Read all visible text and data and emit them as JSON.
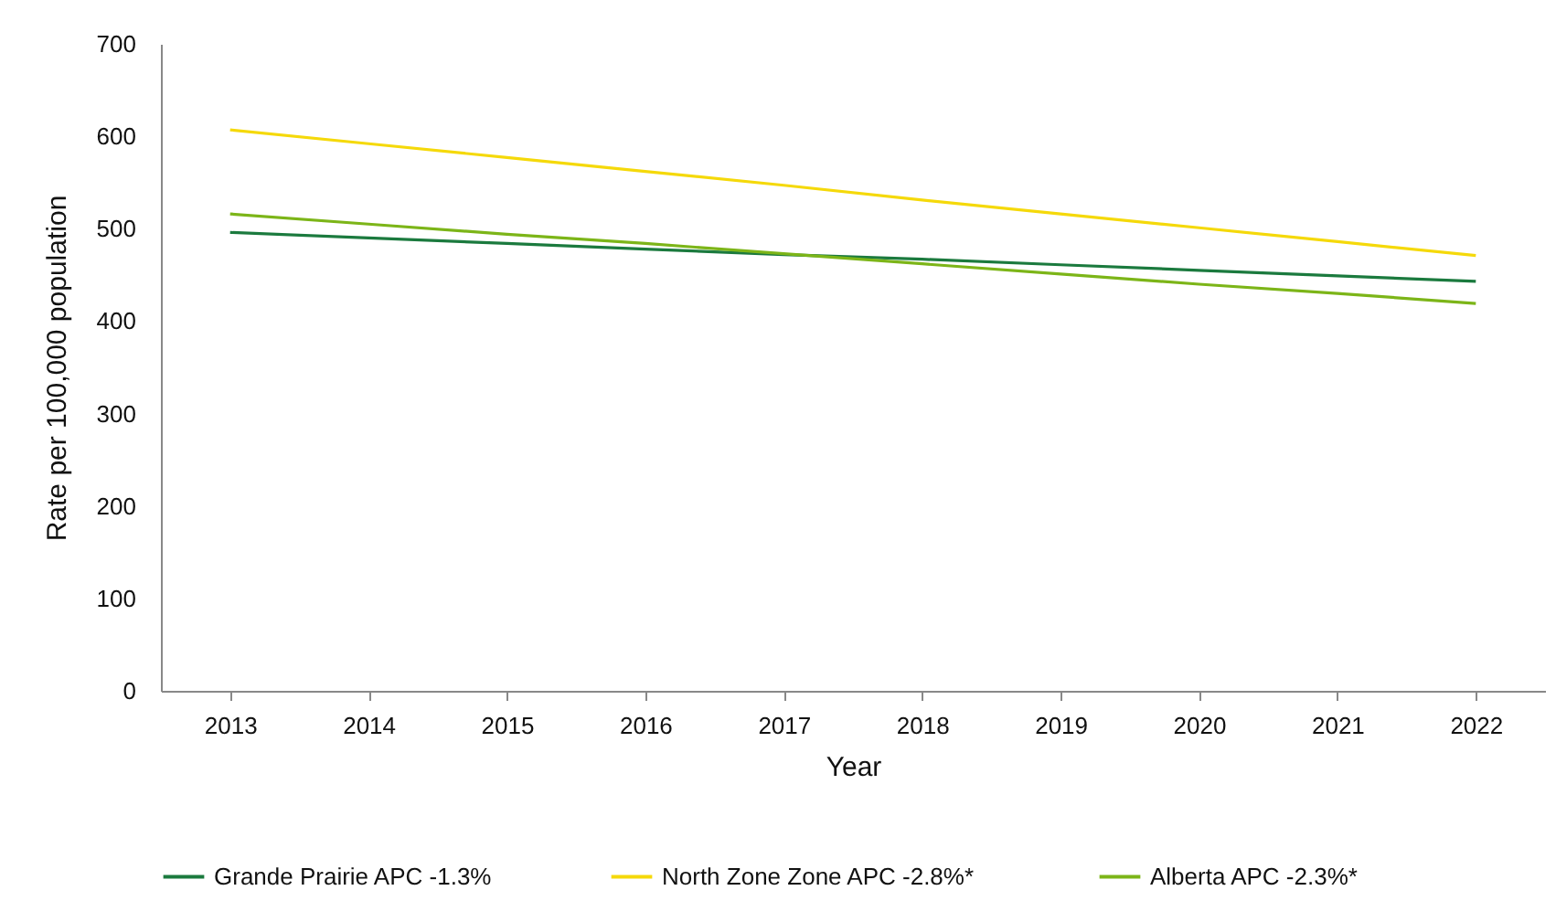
{
  "chart_data": {
    "type": "line",
    "xlabel": "Year",
    "ylabel": "Rate per 100,000 population",
    "categories": [
      "2013",
      "2014",
      "2015",
      "2016",
      "2017",
      "2018",
      "2019",
      "2020",
      "2021",
      "2022"
    ],
    "series": [
      {
        "name": "Grande Prairie APC -1.3%",
        "color": "#1b7a3e",
        "values": [
          496,
          490,
          484,
          478,
          472,
          467,
          461,
          455,
          449,
          443
        ]
      },
      {
        "name": "North Zone Zone  APC -2.8%*",
        "color": "#f5d90a",
        "values": [
          607,
          592,
          577,
          562,
          547,
          531,
          516,
          501,
          486,
          471
        ]
      },
      {
        "name": "Alberta  APC -2.3%*",
        "color": "#7cb518",
        "values": [
          516,
          505,
          494,
          484,
          473,
          462,
          451,
          440,
          430,
          419
        ]
      }
    ],
    "ylim": [
      0,
      700
    ],
    "yticks": [
      0,
      100,
      200,
      300,
      400,
      500,
      600,
      700
    ],
    "grid": false,
    "legend": "bottom",
    "marker": "none",
    "line_style": "solid"
  }
}
